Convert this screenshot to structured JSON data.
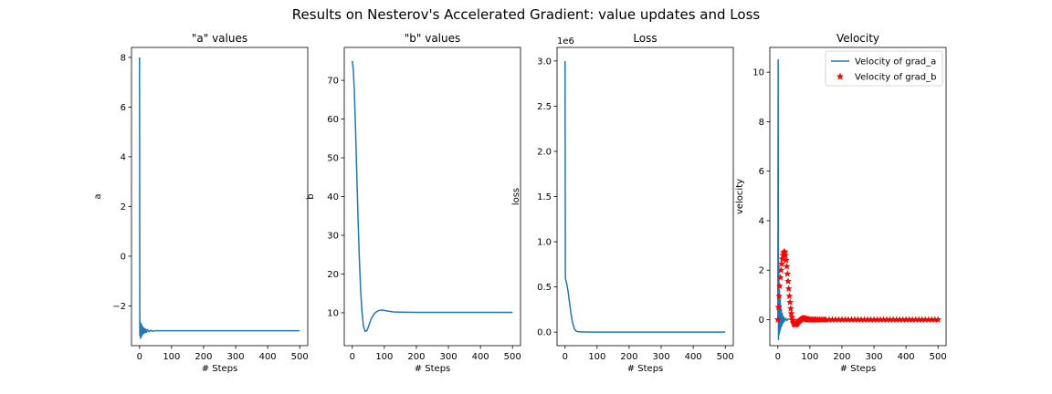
{
  "figure": {
    "title": "Results on Nesterov's Accelerated Gradient: value updates and Loss"
  },
  "chart_data": [
    {
      "type": "line",
      "title": "\"a\" values",
      "xlabel": "# Steps",
      "ylabel": "a",
      "xlim": [
        -25,
        525
      ],
      "ylim": [
        -3.6,
        8.4
      ],
      "xticks": [
        0,
        100,
        200,
        300,
        400,
        500
      ],
      "xtick_labels": [
        "0",
        "100",
        "200",
        "300",
        "400",
        "500"
      ],
      "yticks": [
        -2,
        0,
        2,
        4,
        6,
        8
      ],
      "ytick_labels": [
        "−2",
        "0",
        "2",
        "4",
        "6",
        "8"
      ],
      "legend": null,
      "series": [
        {
          "color": "#1f77b4",
          "style": "line",
          "x": [
            0,
            1,
            2,
            3,
            4,
            5,
            6,
            7,
            8,
            9,
            10,
            11,
            12,
            13,
            14,
            15,
            16,
            18,
            20,
            22,
            25,
            30,
            35,
            40,
            50,
            60,
            80,
            100,
            150,
            200,
            300,
            400,
            500
          ],
          "y": [
            8.0,
            -3.2,
            -2.6,
            -3.3,
            -2.7,
            -3.25,
            -2.75,
            -3.2,
            -2.8,
            -3.15,
            -2.85,
            -3.12,
            -2.88,
            -3.1,
            -2.9,
            -3.08,
            -2.92,
            -3.07,
            -2.94,
            -3.06,
            -2.96,
            -3.04,
            -2.98,
            -3.02,
            -3.0,
            -3.0,
            -3.0,
            -3.0,
            -3.0,
            -3.0,
            -3.0,
            -3.0,
            -3.0
          ]
        }
      ]
    },
    {
      "type": "line",
      "title": "\"b\" values",
      "xlabel": "# Steps",
      "ylabel": "b",
      "xlim": [
        -25,
        525
      ],
      "ylim": [
        1.5,
        78.5
      ],
      "xticks": [
        0,
        100,
        200,
        300,
        400,
        500
      ],
      "xtick_labels": [
        "0",
        "100",
        "200",
        "300",
        "400",
        "500"
      ],
      "yticks": [
        10,
        20,
        30,
        40,
        50,
        60,
        70
      ],
      "ytick_labels": [
        "10",
        "20",
        "30",
        "40",
        "50",
        "60",
        "70"
      ],
      "legend": null,
      "series": [
        {
          "color": "#1f77b4",
          "style": "line",
          "x": [
            0,
            3,
            6,
            10,
            14,
            18,
            22,
            26,
            30,
            35,
            40,
            45,
            50,
            55,
            60,
            70,
            80,
            90,
            100,
            115,
            130,
            150,
            200,
            300,
            400,
            500
          ],
          "y": [
            75,
            73,
            68,
            58,
            46,
            34,
            24,
            16,
            10.5,
            6.5,
            5.2,
            5.3,
            6.3,
            7.5,
            8.6,
            9.9,
            10.5,
            10.7,
            10.6,
            10.35,
            10.2,
            10.15,
            10.1,
            10.1,
            10.1,
            10.1
          ]
        }
      ]
    },
    {
      "type": "line",
      "title": "Loss",
      "xlabel": "# Steps",
      "ylabel": "loss",
      "y_multiplier_label": "1e6",
      "xlim": [
        -25,
        525
      ],
      "ylim": [
        -0.15,
        3.15
      ],
      "xticks": [
        0,
        100,
        200,
        300,
        400,
        500
      ],
      "xtick_labels": [
        "0",
        "100",
        "200",
        "300",
        "400",
        "500"
      ],
      "yticks": [
        0.0,
        0.5,
        1.0,
        1.5,
        2.0,
        2.5,
        3.0
      ],
      "ytick_labels": [
        "0.0",
        "0.5",
        "1.0",
        "1.5",
        "2.0",
        "2.5",
        "3.0"
      ],
      "legend": null,
      "series": [
        {
          "color": "#1f77b4",
          "style": "line",
          "x": [
            0,
            1,
            2,
            4,
            6,
            8,
            10,
            12,
            15,
            18,
            22,
            26,
            30,
            35,
            40,
            50,
            60,
            100,
            200,
            300,
            400,
            500
          ],
          "y": [
            3.0,
            0.6,
            0.58,
            0.55,
            0.52,
            0.48,
            0.44,
            0.38,
            0.3,
            0.22,
            0.13,
            0.07,
            0.03,
            0.01,
            0.005,
            0.002,
            0.001,
            0.0,
            0.0,
            0.0,
            0.0,
            0.0
          ]
        }
      ]
    },
    {
      "type": "line",
      "title": "Velocity",
      "xlabel": "# Steps",
      "ylabel": "velocity",
      "xlim": [
        -25,
        525
      ],
      "ylim": [
        -1.05,
        11.0
      ],
      "xticks": [
        0,
        100,
        200,
        300,
        400,
        500
      ],
      "xtick_labels": [
        "0",
        "100",
        "200",
        "300",
        "400",
        "500"
      ],
      "yticks": [
        0,
        2,
        4,
        6,
        8,
        10
      ],
      "ytick_labels": [
        "0",
        "2",
        "4",
        "6",
        "8",
        "10"
      ],
      "legend": {
        "position": "upper right",
        "entries": [
          "Velocity of grad_a",
          "Velocity of grad_b"
        ]
      },
      "series": [
        {
          "name": "Velocity of grad_a",
          "color": "#1f77b4",
          "style": "line",
          "x": [
            0,
            1,
            2,
            3,
            4,
            5,
            6,
            7,
            8,
            9,
            10,
            11,
            12,
            14,
            16,
            18,
            20,
            24,
            28,
            32,
            40,
            50,
            60,
            100,
            200,
            300,
            400,
            500
          ],
          "y": [
            0,
            10.5,
            -0.8,
            2.2,
            -0.6,
            1.2,
            -0.5,
            0.8,
            -0.4,
            0.6,
            -0.3,
            0.4,
            -0.25,
            0.25,
            -0.15,
            0.12,
            -0.08,
            0.06,
            -0.04,
            0.03,
            0.01,
            0.0,
            0.0,
            0.0,
            0.0,
            0.0,
            0.0,
            0.0
          ]
        },
        {
          "name": "Velocity of grad_b",
          "color": "#ff0000",
          "style": "star",
          "x": [
            0,
            2,
            4,
            6,
            8,
            10,
            12,
            14,
            16,
            18,
            20,
            22,
            24,
            26,
            28,
            30,
            32,
            34,
            36,
            38,
            40,
            42,
            44,
            46,
            48,
            50,
            52,
            54,
            56,
            58,
            60,
            62,
            64,
            66,
            68,
            70,
            72,
            74,
            76,
            78,
            80,
            82,
            84,
            86,
            88,
            90,
            92,
            94,
            96,
            98,
            100,
            104,
            108,
            112,
            116,
            120,
            125,
            130,
            135,
            140,
            145,
            150,
            160,
            170,
            180,
            190,
            200,
            210,
            220,
            230,
            240,
            250,
            260,
            270,
            280,
            290,
            300,
            310,
            320,
            330,
            340,
            350,
            360,
            370,
            380,
            390,
            400,
            410,
            420,
            430,
            440,
            450,
            460,
            470,
            480,
            490,
            500
          ],
          "y": [
            0.0,
            0.5,
            0.95,
            1.35,
            1.7,
            2.0,
            2.25,
            2.45,
            2.6,
            2.7,
            2.75,
            2.72,
            2.6,
            2.4,
            2.15,
            1.85,
            1.55,
            1.25,
            0.95,
            0.7,
            0.45,
            0.25,
            0.1,
            -0.02,
            -0.1,
            -0.16,
            -0.19,
            -0.2,
            -0.2,
            -0.18,
            -0.15,
            -0.12,
            -0.09,
            -0.06,
            -0.03,
            -0.01,
            0.01,
            0.03,
            0.04,
            0.05,
            0.05,
            0.05,
            0.04,
            0.04,
            0.03,
            0.02,
            0.01,
            0.01,
            0.0,
            0.0,
            0.0,
            0.0,
            0.0,
            0.0,
            0.0,
            0.0,
            0.0,
            0.0,
            0.0,
            0.0,
            0.0,
            0.0,
            0.0,
            0.0,
            0.0,
            0.0,
            0.0,
            0.0,
            0.0,
            0.0,
            0.0,
            0.0,
            0.0,
            0.0,
            0.0,
            0.0,
            0.0,
            0.0,
            0.0,
            0.0,
            0.0,
            0.0,
            0.0,
            0.0,
            0.0,
            0.0,
            0.0,
            0.0,
            0.0,
            0.0,
            0.0,
            0.0,
            0.0,
            0.0,
            0.0,
            0.0,
            0.0
          ]
        }
      ]
    }
  ]
}
